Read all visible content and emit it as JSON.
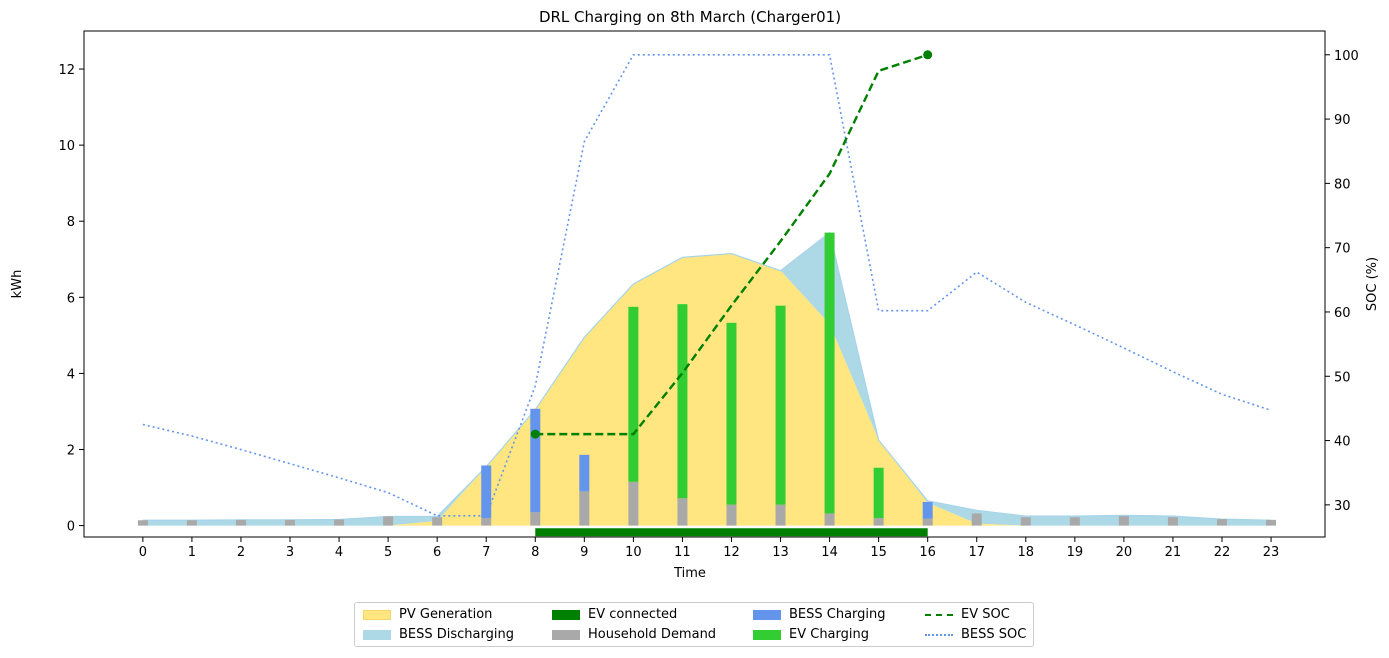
{
  "chart_data": {
    "type": "bar",
    "title": "DRL Charging on 8th March (Charger01)",
    "xlabel": "Time",
    "ylabel": "kWh",
    "y2label": "SOC (%)",
    "x": [
      0,
      1,
      2,
      3,
      4,
      5,
      6,
      7,
      8,
      9,
      10,
      11,
      12,
      13,
      14,
      15,
      16,
      17,
      18,
      19,
      20,
      21,
      22,
      23
    ],
    "xlim": [
      -1.2,
      24.1
    ],
    "ylim": [
      -0.3,
      13.0
    ],
    "y2lim": [
      25.0,
      103.7
    ],
    "yticks": [
      0,
      2,
      4,
      6,
      8,
      10,
      12
    ],
    "y2ticks": [
      30,
      40,
      50,
      60,
      70,
      80,
      90,
      100
    ],
    "grid": false,
    "legend_position": "bottom-center",
    "series": [
      {
        "name": "PV Generation",
        "kind": "area",
        "color": "#ffe680",
        "values": [
          0,
          0,
          0,
          0,
          0,
          0,
          0.12,
          1.55,
          3.05,
          4.95,
          6.35,
          7.05,
          7.15,
          6.7,
          5.3,
          2.25,
          0.6,
          0.05,
          0,
          0,
          0,
          0,
          0,
          0
        ]
      },
      {
        "name": "BESS Discharging",
        "kind": "area",
        "color": "#add8e6",
        "top": [
          0.14,
          0.14,
          0.15,
          0.15,
          0.16,
          0.24,
          0.24,
          1.55,
          3.05,
          4.95,
          6.35,
          7.05,
          7.15,
          6.7,
          7.7,
          2.25,
          0.65,
          0.4,
          0.25,
          0.25,
          0.27,
          0.25,
          0.17,
          0.14
        ],
        "bottom": [
          0,
          0,
          0,
          0,
          0,
          0,
          0.12,
          1.55,
          3.05,
          4.95,
          6.35,
          7.05,
          7.15,
          6.7,
          5.3,
          2.25,
          0.6,
          0.05,
          0,
          0,
          0,
          0,
          0,
          0
        ]
      },
      {
        "name": "Household Demand",
        "kind": "bar",
        "color": "#a9a9a9",
        "values": [
          0.14,
          0.14,
          0.15,
          0.15,
          0.16,
          0.24,
          0.22,
          0.2,
          0.35,
          0.9,
          1.15,
          0.72,
          0.55,
          0.55,
          0.32,
          0.2,
          0.18,
          0.32,
          0.22,
          0.22,
          0.25,
          0.22,
          0.17,
          0.15
        ]
      },
      {
        "name": "BESS Charging",
        "kind": "bar",
        "color": "#6495ed",
        "values": [
          0,
          0,
          0,
          0,
          0,
          0,
          0,
          1.38,
          2.72,
          0.96,
          0,
          0,
          0,
          0,
          0,
          0,
          0.44,
          0,
          0,
          0,
          0,
          0,
          0,
          0
        ]
      },
      {
        "name": "EV Charging",
        "kind": "bar",
        "color": "#32cd32",
        "values": [
          0,
          0,
          0,
          0,
          0,
          0,
          0,
          0,
          0,
          0,
          4.6,
          5.1,
          4.78,
          5.23,
          7.38,
          1.32,
          0,
          0,
          0,
          0,
          0,
          0,
          0,
          0
        ]
      },
      {
        "name": "EV connected",
        "kind": "span",
        "color": "#008000",
        "from": 8,
        "to": 16
      },
      {
        "name": "EV SOC",
        "kind": "line",
        "axis": "right",
        "color": "#008000",
        "x": [
          8,
          9,
          10,
          11,
          12,
          13,
          14,
          15,
          16
        ],
        "values": [
          41,
          41,
          41,
          50.5,
          61,
          71,
          81.5,
          97.5,
          100
        ]
      },
      {
        "name": "BESS SOC",
        "kind": "line",
        "axis": "right",
        "color": "#6495ed",
        "values": [
          42.5,
          40.7,
          38.6,
          36.4,
          34.2,
          31.9,
          28.3,
          28.3,
          48.5,
          86.5,
          100,
          100,
          100,
          100,
          100,
          60.2,
          60.2,
          66.2,
          61.5,
          58,
          54.4,
          50.7,
          47.2,
          44.7
        ]
      }
    ]
  }
}
